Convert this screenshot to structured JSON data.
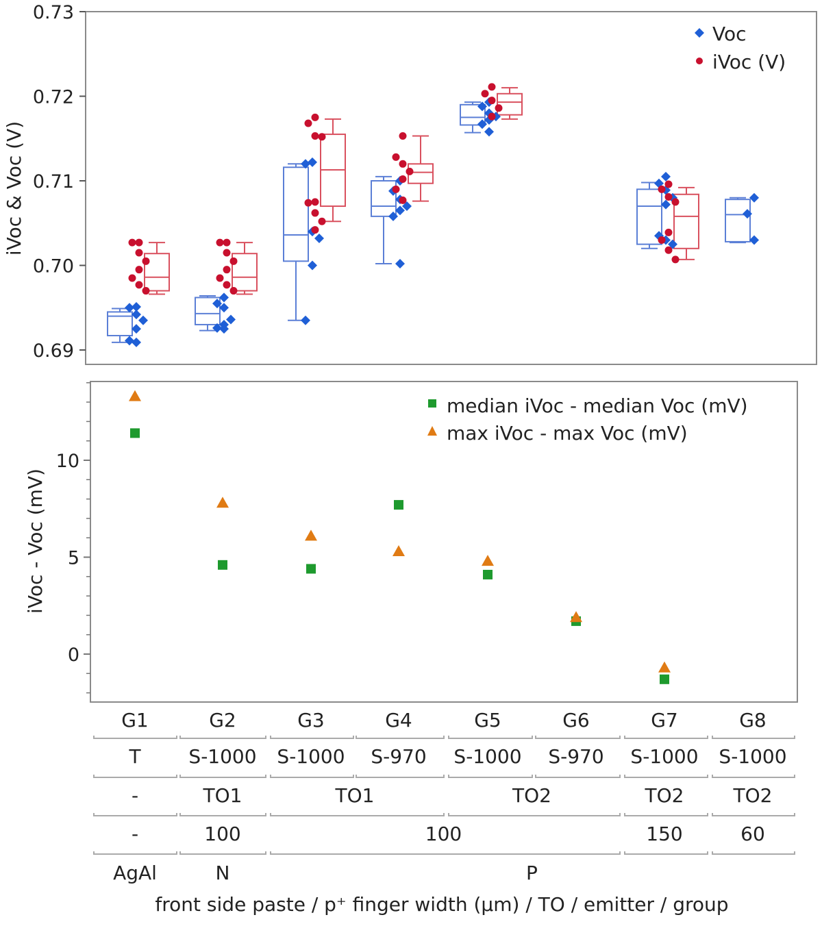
{
  "chart_data": [
    {
      "type": "box+scatter",
      "ylabel": "iVoc & Voc (V)",
      "ylim": [
        0.6885,
        0.73
      ],
      "yticks": [
        0.69,
        0.7,
        0.71,
        0.72,
        0.73
      ],
      "ytick_labels": [
        "0.69",
        "0.70",
        "0.71",
        "0.72",
        "0.73"
      ],
      "categories": [
        "G1",
        "G2",
        "G3",
        "G4",
        "G5",
        "G6",
        "G7",
        "G8"
      ],
      "legend": [
        "Voc",
        "iVoc (V)"
      ],
      "colors": {
        "Voc": "#1f5fd6",
        "iVoc": "#c8102e",
        "box_voc": "#5b7fd6",
        "box_ivoc": "#d9505e"
      },
      "series": [
        {
          "name": "Voc",
          "groups": [
            {
              "points": [
                0.6951,
                0.695,
                0.6942,
                0.6935,
                0.6925,
                0.6911,
                0.6909
              ],
              "box": {
                "min": 0.6909,
                "q1": 0.6917,
                "median": 0.694,
                "q3": 0.6945,
                "max": 0.6949
              }
            },
            {
              "points": [
                0.6962,
                0.6955,
                0.695,
                0.6936,
                0.693,
                0.6926,
                0.6925
              ],
              "box": {
                "min": 0.6923,
                "q1": 0.693,
                "median": 0.6943,
                "q3": 0.6962,
                "max": 0.6964
              }
            },
            {
              "points": [
                0.7122,
                0.712,
                0.704,
                0.7032,
                0.7,
                0.6935
              ],
              "box": {
                "min": 0.6935,
                "q1": 0.7005,
                "median": 0.7036,
                "q3": 0.7116,
                "max": 0.712
              }
            },
            {
              "points": [
                0.71,
                0.7088,
                0.7078,
                0.707,
                0.7065,
                0.7058,
                0.7002
              ],
              "box": {
                "min": 0.7002,
                "q1": 0.7058,
                "median": 0.707,
                "q3": 0.71,
                "max": 0.7105
              }
            },
            {
              "points": [
                0.7193,
                0.7188,
                0.718,
                0.7176,
                0.7172,
                0.7167,
                0.7158
              ],
              "box": {
                "min": 0.7157,
                "q1": 0.7166,
                "median": 0.7175,
                "q3": 0.719,
                "max": 0.7193
              }
            },
            {
              "points": [
                0.7105,
                0.7097,
                0.7089,
                0.708,
                0.7072,
                0.7035,
                0.703,
                0.7025
              ],
              "box": {
                "min": 0.702,
                "q1": 0.7025,
                "median": 0.707,
                "q3": 0.709,
                "max": 0.7098
              }
            },
            {
              "points": [
                0.708,
                0.7061,
                0.703
              ],
              "box": {
                "min": 0.7027,
                "q1": 0.7028,
                "median": 0.706,
                "q3": 0.7078,
                "max": 0.708
              }
            }
          ]
        },
        {
          "name": "iVoc (V)",
          "groups": [
            {
              "points": [
                0.7027,
                0.7027,
                0.7015,
                0.7005,
                0.6995,
                0.6985,
                0.6977,
                0.697
              ],
              "box": {
                "min": 0.6966,
                "q1": 0.697,
                "median": 0.6986,
                "q3": 0.7014,
                "max": 0.7027
              }
            },
            {
              "points": [
                0.7027,
                0.7027,
                0.7015,
                0.7005,
                0.6995,
                0.6985,
                0.6977,
                0.697
              ],
              "box": {
                "min": 0.6966,
                "q1": 0.697,
                "median": 0.6986,
                "q3": 0.7014,
                "max": 0.7027
              }
            },
            {
              "points": [
                0.7175,
                0.7168,
                0.7153,
                0.7152,
                0.7075,
                0.7074,
                0.7062,
                0.7052,
                0.7042
              ],
              "box": {
                "min": 0.7052,
                "q1": 0.707,
                "median": 0.7113,
                "q3": 0.7155,
                "max": 0.7173
              }
            },
            {
              "points": [
                0.7153,
                0.7128,
                0.712,
                0.7111,
                0.7102,
                0.709,
                0.7077
              ],
              "box": {
                "min": 0.7076,
                "q1": 0.7097,
                "median": 0.711,
                "q3": 0.712,
                "max": 0.7153
              }
            },
            {
              "points": [
                0.7211,
                0.7203,
                0.7195,
                0.7186,
                0.7176
              ],
              "box": {
                "min": 0.7173,
                "q1": 0.7178,
                "median": 0.7193,
                "q3": 0.7203,
                "max": 0.721
              }
            },
            {
              "points": [
                0.7096,
                0.709,
                0.7081,
                0.7075,
                0.7039,
                0.703,
                0.7018,
                0.7007
              ],
              "box": {
                "min": 0.7007,
                "q1": 0.702,
                "median": 0.7058,
                "q3": 0.7084,
                "max": 0.7092
              }
            }
          ]
        }
      ]
    },
    {
      "type": "scatter",
      "ylabel": "iVoc - Voc (mV)",
      "ylim": [
        -2.5,
        14
      ],
      "yticks": [
        0,
        5,
        10
      ],
      "ytick_labels": [
        "0",
        "5",
        "10"
      ],
      "categories": [
        "G1",
        "G2",
        "G3",
        "G4",
        "G5",
        "G6",
        "G7",
        "G8"
      ],
      "legend": [
        "median iVoc - median Voc (mV)",
        "max iVoc - max Voc (mV)"
      ],
      "colors": {
        "median": "#1e9a2e",
        "max": "#e07b14"
      },
      "series": [
        {
          "name": "median iVoc - median Voc (mV)",
          "values": [
            11.4,
            4.6,
            4.4,
            7.7,
            4.1,
            1.7,
            -1.3,
            null
          ]
        },
        {
          "name": "max iVoc - max Voc (mV)",
          "values": [
            13.3,
            7.8,
            6.1,
            5.3,
            4.8,
            1.9,
            -0.7,
            null
          ]
        }
      ],
      "xlabel": "front side paste / p⁺ finger width (µm) / TO / emitter / group",
      "table": {
        "row1": [
          "G1",
          "G2",
          "G3",
          "G4",
          "G5",
          "G6",
          "G7",
          "G8"
        ],
        "row2": [
          "T",
          "S-1000",
          "S-1000",
          "S-970",
          "S-1000",
          "S-970",
          "S-1000",
          "S-1000"
        ],
        "row3": [
          {
            "label": "-",
            "span": [
              0,
              0
            ]
          },
          {
            "label": "TO1",
            "span": [
              1,
              1
            ]
          },
          {
            "label": "TO1",
            "span": [
              2,
              3
            ]
          },
          {
            "label": "TO2",
            "span": [
              4,
              5
            ]
          },
          {
            "label": "TO2",
            "span": [
              6,
              6
            ]
          },
          {
            "label": "TO2",
            "span": [
              7,
              7
            ]
          }
        ],
        "row4": [
          {
            "label": "-",
            "span": [
              0,
              0
            ]
          },
          {
            "label": "100",
            "span": [
              1,
              1
            ]
          },
          {
            "label": "100",
            "span": [
              2,
              5
            ]
          },
          {
            "label": "150",
            "span": [
              6,
              6
            ]
          },
          {
            "label": "60",
            "span": [
              7,
              7
            ]
          }
        ],
        "row5": [
          {
            "label": "AgAl",
            "span": [
              0,
              0
            ]
          },
          {
            "label": "N",
            "span": [
              1,
              1
            ]
          },
          {
            "label": "P",
            "span": [
              2,
              7
            ]
          }
        ]
      }
    }
  ]
}
